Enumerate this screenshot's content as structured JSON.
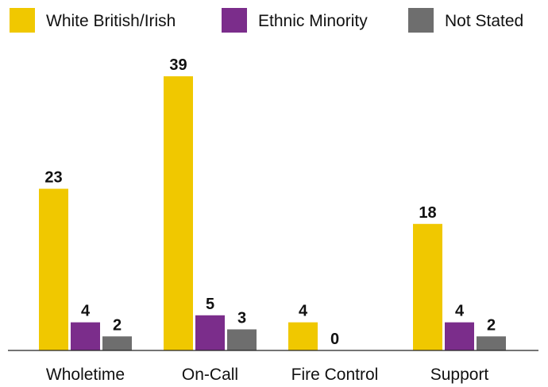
{
  "chart_data": {
    "type": "bar",
    "categories": [
      "Wholetime",
      "On-Call",
      "Fire Control",
      "Support"
    ],
    "series": [
      {
        "name": "White British/Irish",
        "values": [
          23,
          39,
          4,
          18
        ],
        "color": "#F0C800"
      },
      {
        "name": "Ethnic Minority",
        "values": [
          4,
          5,
          0,
          4
        ],
        "color": "#7B2D8B"
      },
      {
        "name": "Not Stated",
        "values": [
          2,
          3,
          null,
          2
        ],
        "color": "#6E6E6E"
      }
    ],
    "data_labels": [
      [
        "23",
        "39",
        "4",
        "18"
      ],
      [
        "4",
        "5",
        "0",
        "4"
      ],
      [
        "2",
        "3",
        "",
        "2"
      ]
    ],
    "ylim": [
      0,
      39
    ],
    "grid": false,
    "legend_position": "top"
  }
}
